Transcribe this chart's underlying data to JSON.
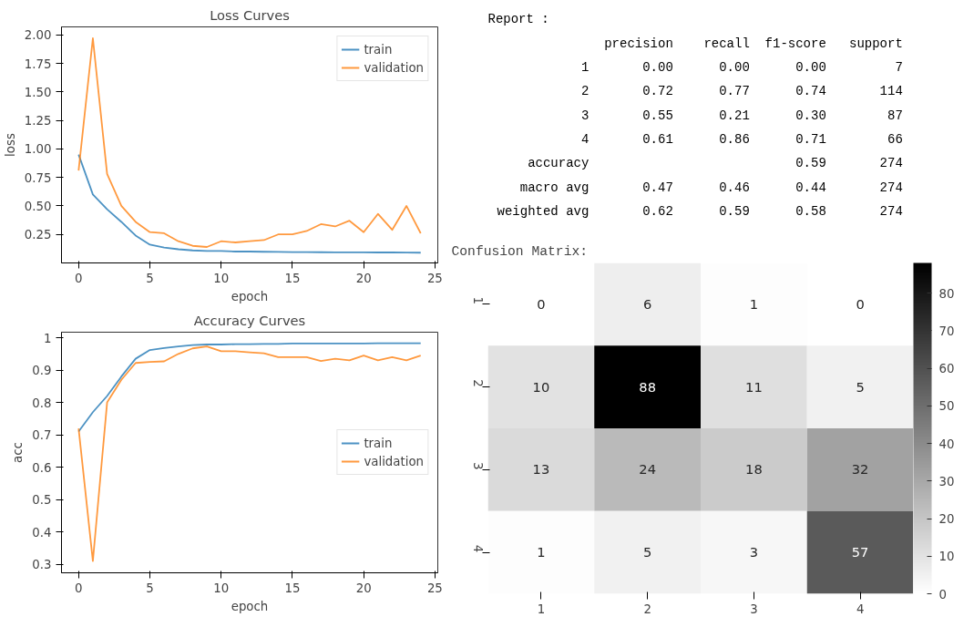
{
  "chart_data": [
    {
      "type": "line",
      "title": "Loss Curves",
      "xlabel": "epoch",
      "ylabel": "loss",
      "x": [
        0,
        1,
        2,
        3,
        4,
        5,
        6,
        7,
        8,
        9,
        10,
        11,
        12,
        13,
        14,
        15,
        16,
        17,
        18,
        19,
        20,
        21,
        22,
        23,
        24
      ],
      "series": [
        {
          "name": "train",
          "color": "#1f77b4",
          "values": [
            0.95,
            0.6,
            0.47,
            0.36,
            0.24,
            0.16,
            0.135,
            0.12,
            0.11,
            0.105,
            0.105,
            0.1,
            0.1,
            0.098,
            0.097,
            0.095,
            0.095,
            0.094,
            0.093,
            0.093,
            0.093,
            0.092,
            0.092,
            0.091,
            0.09
          ]
        },
        {
          "name": "validation",
          "color": "#ff7f0e",
          "values": [
            0.81,
            1.97,
            0.78,
            0.5,
            0.36,
            0.27,
            0.26,
            0.19,
            0.15,
            0.14,
            0.19,
            0.18,
            0.19,
            0.2,
            0.25,
            0.25,
            0.28,
            0.34,
            0.32,
            0.37,
            0.27,
            0.43,
            0.29,
            0.5,
            0.26
          ]
        }
      ],
      "xlim": [
        -1.2,
        25.2
      ],
      "ylim": [
        0.0,
        2.07
      ],
      "xticks": [
        0,
        5,
        10,
        15,
        20,
        25
      ],
      "yticks": [
        {
          "value": 0.25,
          "label": "0.25"
        },
        {
          "value": 0.5,
          "label": "0.50"
        },
        {
          "value": 0.75,
          "label": "0.75"
        },
        {
          "value": 1.0,
          "label": "1.00"
        },
        {
          "value": 1.25,
          "label": "1.25"
        },
        {
          "value": 1.5,
          "label": "1.50"
        },
        {
          "value": 1.75,
          "label": "1.75"
        },
        {
          "value": 2.0,
          "label": "2.00"
        }
      ],
      "grid": false,
      "legend": "top right"
    },
    {
      "type": "line",
      "title": "Accuracy Curves",
      "xlabel": "epoch",
      "ylabel": "acc",
      "x": [
        0,
        1,
        2,
        3,
        4,
        5,
        6,
        7,
        8,
        9,
        10,
        11,
        12,
        13,
        14,
        15,
        16,
        17,
        18,
        19,
        20,
        21,
        22,
        23,
        24
      ],
      "series": [
        {
          "name": "train",
          "color": "#1f77b4",
          "values": [
            0.71,
            0.77,
            0.82,
            0.88,
            0.935,
            0.962,
            0.968,
            0.973,
            0.977,
            0.979,
            0.979,
            0.98,
            0.98,
            0.981,
            0.981,
            0.982,
            0.982,
            0.982,
            0.982,
            0.982,
            0.982,
            0.983,
            0.983,
            0.983,
            0.983
          ]
        },
        {
          "name": "validation",
          "color": "#ff7f0e",
          "values": [
            0.72,
            0.31,
            0.8,
            0.87,
            0.922,
            0.925,
            0.927,
            0.95,
            0.967,
            0.973,
            0.958,
            0.958,
            0.955,
            0.952,
            0.94,
            0.94,
            0.94,
            0.928,
            0.935,
            0.93,
            0.945,
            0.93,
            0.94,
            0.93,
            0.945
          ]
        }
      ],
      "xlim": [
        -1.2,
        25.2
      ],
      "ylim": [
        0.274,
        1.017
      ],
      "xticks": [
        0,
        5,
        10,
        15,
        20,
        25
      ],
      "yticks": [
        0.3,
        0.4,
        0.5,
        0.6,
        0.7,
        0.8,
        0.9,
        1.0
      ],
      "grid": false,
      "legend": "right"
    },
    {
      "type": "other",
      "title": "Report :",
      "annotations": [
        "precision  recall  f1-score  support",
        "1  0.00  0.00  0.00  7",
        "2  0.72  0.77  0.74  114",
        "3  0.55  0.21  0.30  87",
        "4  0.61  0.86  0.71  66",
        "accuracy  0.59  274",
        "macro avg  0.47  0.46  0.44  274",
        "weighted avg  0.62  0.59  0.58  274"
      ]
    },
    {
      "type": "heatmap",
      "title": "Confusion Matrix:",
      "categories": [
        "1",
        "2",
        "3",
        "4"
      ],
      "y_categories": [
        "1",
        "2",
        "3",
        "4"
      ],
      "cells": [
        [
          0,
          6,
          1,
          0
        ],
        [
          10,
          88,
          11,
          5
        ],
        [
          13,
          24,
          18,
          32
        ],
        [
          1,
          5,
          3,
          57
        ]
      ],
      "cell_labels": [
        [
          "0",
          "6",
          "1",
          "0"
        ],
        [
          "10",
          "88",
          "11",
          "5"
        ],
        [
          "13",
          "24",
          "18",
          "32"
        ],
        [
          "1",
          "5",
          "3",
          "57"
        ]
      ],
      "clim": [
        0,
        88
      ],
      "cticks": [
        0,
        10,
        20,
        30,
        40,
        50,
        60,
        70,
        80
      ]
    }
  ]
}
